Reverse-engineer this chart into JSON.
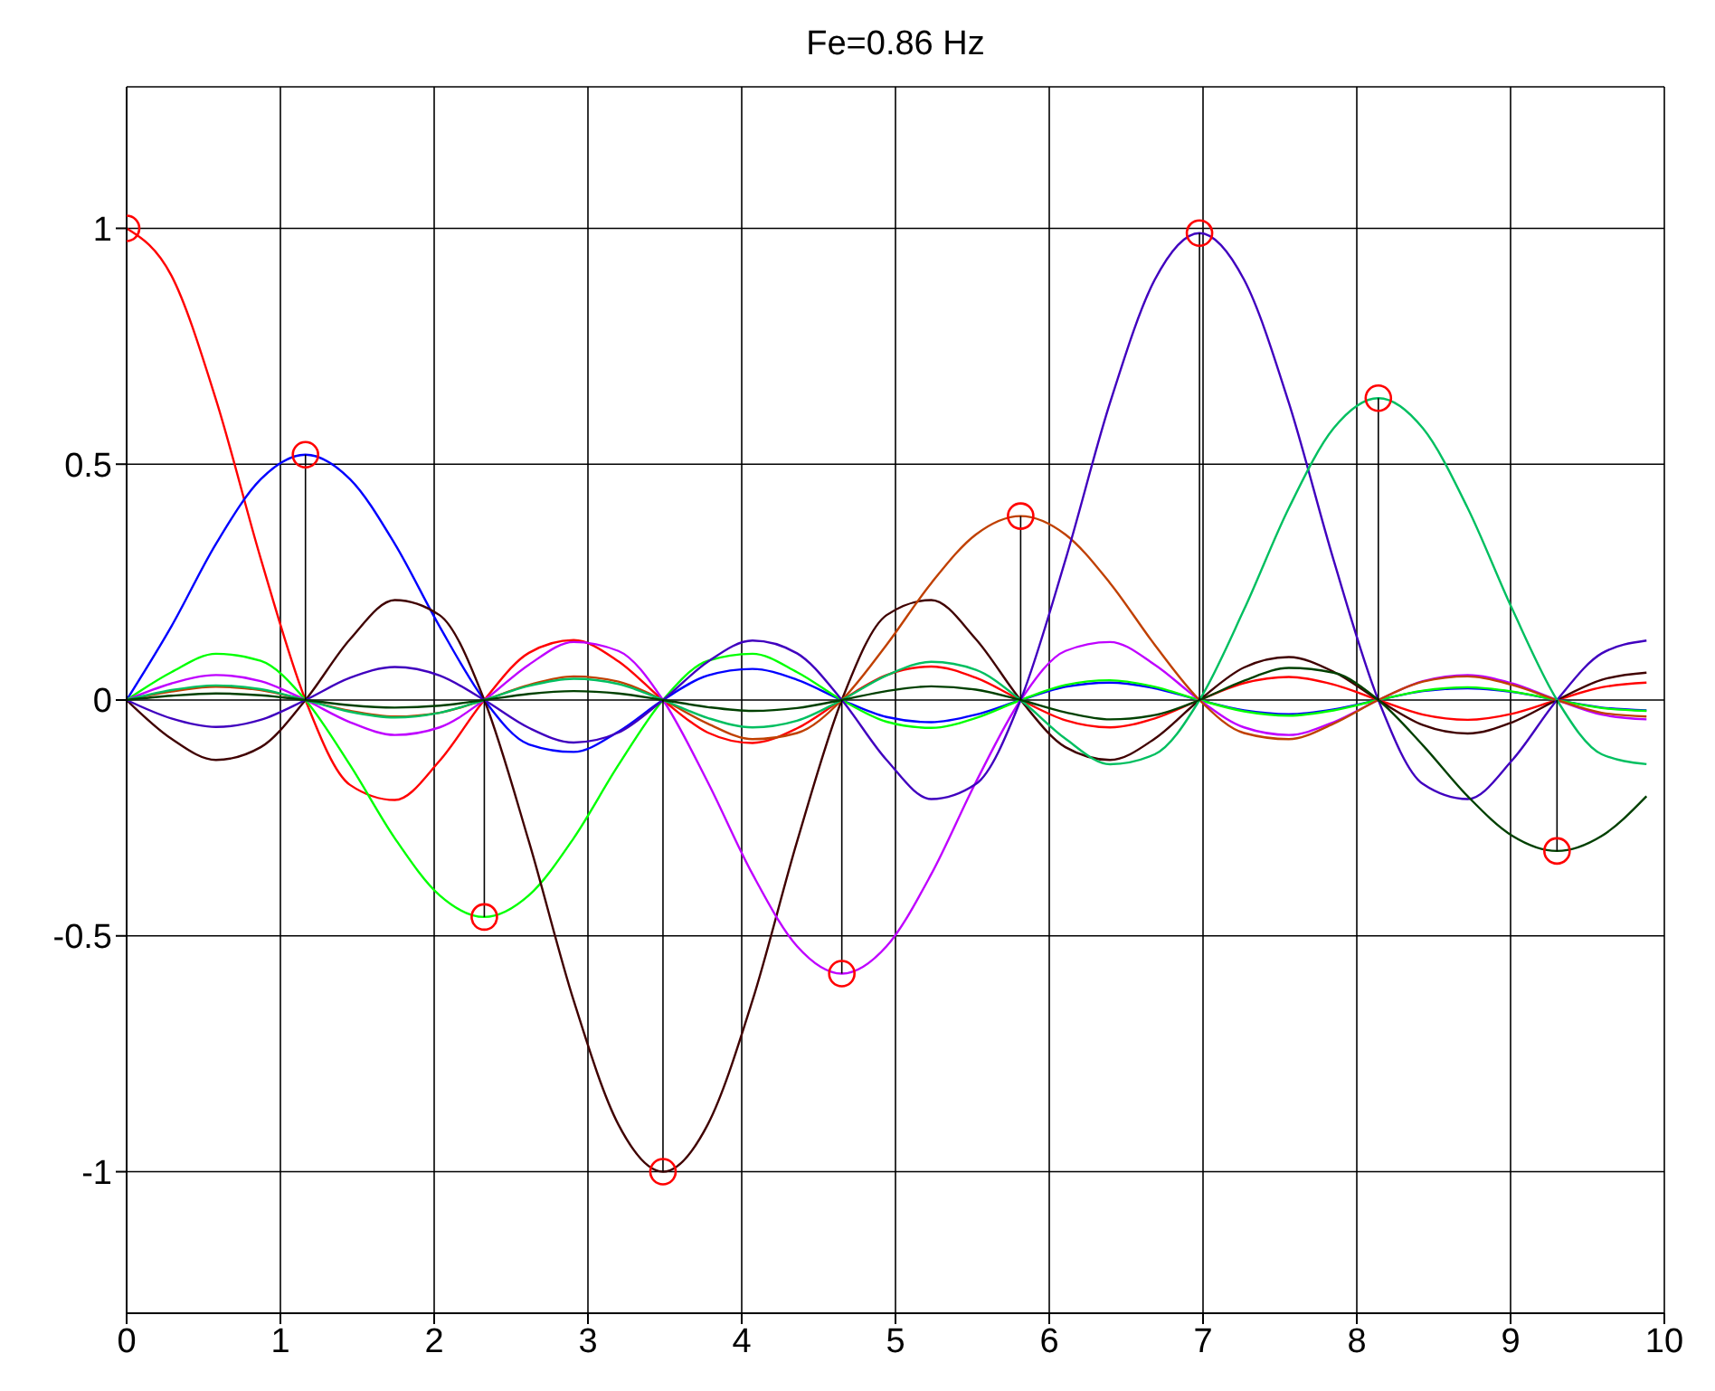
{
  "chart_data": {
    "type": "line",
    "title": "Fe=0.86 Hz",
    "x": [
      0,
      0.291,
      0.581,
      0.872,
      1.163,
      1.453,
      1.744,
      2.035,
      2.326,
      2.616,
      2.907,
      3.198,
      3.488,
      3.779,
      4.07,
      4.36,
      4.651,
      4.942,
      5.233,
      5.523,
      5.814,
      6.105,
      6.395,
      6.686,
      6.977,
      7.267,
      7.558,
      7.849,
      8.14,
      8.43,
      8.721,
      9.012,
      9.302,
      9.593,
      9.884
    ],
    "series": [
      {
        "color": "#ff0000",
        "values": [
          1,
          0.9,
          0.637,
          0.3,
          0,
          -0.18,
          -0.212,
          -0.129,
          0,
          0.1,
          0.127,
          0.082,
          0,
          -0.069,
          -0.091,
          -0.06,
          0,
          0.053,
          0.071,
          0.047,
          0,
          -0.043,
          -0.058,
          -0.039,
          0,
          0.036,
          0.049,
          0.033,
          0,
          -0.031,
          -0.042,
          -0.029,
          0,
          0.027,
          0.037
        ]
      },
      {
        "color": "#0000ff",
        "values": [
          0,
          0.156,
          0.331,
          0.468,
          0.52,
          0.468,
          0.331,
          0.156,
          0,
          -0.094,
          -0.11,
          -0.067,
          0,
          0.052,
          0.066,
          0.043,
          0,
          -0.036,
          -0.047,
          -0.031,
          0,
          0.028,
          0.037,
          0.025,
          0,
          -0.022,
          -0.03,
          -0.02,
          0,
          0.019,
          0.025,
          0.017,
          0,
          -0.016,
          -0.022
        ]
      },
      {
        "color": "#00ff00",
        "values": [
          0,
          0.059,
          0.098,
          0.083,
          0,
          -0.138,
          -0.293,
          -0.414,
          -0.46,
          -0.414,
          -0.293,
          -0.138,
          0,
          0.083,
          0.098,
          0.059,
          0,
          -0.046,
          -0.059,
          -0.038,
          0,
          0.032,
          0.042,
          0.028,
          0,
          -0.024,
          -0.033,
          -0.022,
          0,
          0.02,
          0.027,
          0.018,
          0,
          -0.017,
          -0.023
        ]
      },
      {
        "color": "#400000",
        "values": [
          0,
          -0.082,
          -0.127,
          -0.1,
          0,
          0.129,
          0.212,
          0.18,
          0,
          -0.3,
          -0.637,
          -0.9,
          -1,
          -0.9,
          -0.637,
          -0.3,
          0,
          0.18,
          0.212,
          0.129,
          0,
          -0.1,
          -0.127,
          -0.082,
          0,
          0.069,
          0.091,
          0.06,
          0,
          -0.053,
          -0.071,
          -0.047,
          0,
          0.043,
          0.058
        ]
      },
      {
        "color": "#bf00ff",
        "values": [
          0,
          0.035,
          0.053,
          0.04,
          0,
          -0.047,
          -0.074,
          -0.058,
          0,
          0.075,
          0.123,
          0.104,
          0,
          -0.174,
          -0.369,
          -0.522,
          -0.58,
          -0.522,
          -0.369,
          -0.174,
          0,
          0.104,
          0.123,
          0.075,
          0,
          -0.058,
          -0.074,
          -0.047,
          0,
          0.04,
          0.053,
          0.035,
          0,
          -0.031,
          -0.041
        ]
      },
      {
        "color": "#c04000",
        "values": [
          0,
          0.018,
          0.028,
          0.021,
          0,
          -0.023,
          -0.035,
          -0.027,
          0,
          0.032,
          0.05,
          0.039,
          0,
          -0.05,
          -0.083,
          -0.07,
          0,
          0.117,
          0.248,
          0.351,
          0.39,
          0.351,
          0.248,
          0.117,
          0,
          -0.07,
          -0.083,
          -0.05,
          0,
          0.039,
          0.05,
          0.032,
          0,
          -0.027,
          -0.035
        ]
      },
      {
        "color": "#4000bf",
        "values": [
          0,
          -0.039,
          -0.057,
          -0.042,
          0,
          0.047,
          0.07,
          0.052,
          0,
          -0.059,
          -0.09,
          -0.069,
          0,
          0.081,
          0.126,
          0.099,
          0,
          -0.127,
          -0.21,
          -0.178,
          0,
          0.297,
          0.63,
          0.891,
          0.99,
          0.891,
          0.63,
          0.297,
          0,
          -0.178,
          -0.21,
          -0.127,
          0,
          0.099,
          0.126
        ]
      },
      {
        "color": "#00bf60",
        "values": [
          0,
          0.021,
          0.031,
          0.023,
          0,
          -0.025,
          -0.037,
          -0.027,
          0,
          0.03,
          0.045,
          0.034,
          0,
          -0.038,
          -0.058,
          -0.044,
          0,
          0.052,
          0.081,
          0.064,
          0,
          -0.082,
          -0.136,
          -0.115,
          0,
          0.192,
          0.407,
          0.576,
          0.64,
          0.576,
          0.407,
          0.192,
          0,
          -0.115,
          -0.136
        ]
      },
      {
        "color": "#004000",
        "values": [
          0,
          0.009,
          0.014,
          0.01,
          0,
          -0.011,
          -0.016,
          -0.012,
          0,
          0.013,
          0.019,
          0.014,
          0,
          -0.015,
          -0.023,
          -0.017,
          0,
          0.019,
          0.029,
          0.022,
          0,
          -0.026,
          -0.041,
          -0.032,
          0,
          0.041,
          0.068,
          0.058,
          0,
          -0.096,
          -0.204,
          -0.288,
          -0.32,
          -0.288,
          -0.204
        ]
      },
      {
        "type": "lollipop",
        "marker": "circle",
        "color": "#ff0000",
        "x": [
          0,
          1.163,
          2.326,
          3.488,
          4.651,
          5.814,
          6.977,
          8.14,
          9.302
        ],
        "values": [
          1,
          0.52,
          -0.46,
          -1,
          -0.58,
          0.39,
          0.99,
          0.64,
          -0.32
        ]
      }
    ],
    "xlim": [
      0,
      10
    ],
    "xticks": [
      0,
      1,
      2,
      3,
      4,
      5,
      6,
      7,
      8,
      9,
      10
    ],
    "ylim": [
      -1.3,
      1.3
    ],
    "yticks": [
      -1,
      -0.5,
      0,
      0.5,
      1
    ],
    "grid": true
  }
}
